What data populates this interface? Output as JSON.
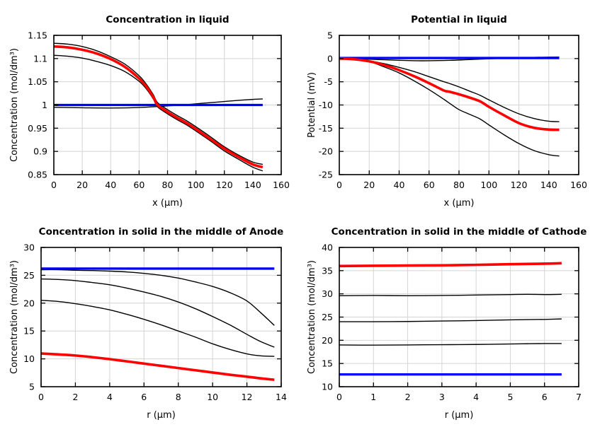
{
  "figure": {
    "background": "#ffffff",
    "grid_color": "#d4d4d4",
    "axis_color": "#000000",
    "text_color": "#000000",
    "accent_red": "#ff0000",
    "accent_blue": "#0000ff"
  },
  "chart_data": [
    {
      "id": "concentration-in-liquid",
      "type": "line",
      "title": "Concentration in liquid",
      "xlabel": "x (μm)",
      "ylabel": "Concentration (mol/dm³)",
      "xlim": [
        0,
        160
      ],
      "ylim": [
        0.85,
        1.15
      ],
      "xticks": [
        0,
        20,
        40,
        60,
        80,
        100,
        120,
        140,
        160
      ],
      "xtick_labels": [
        "0",
        "20",
        "40",
        "60",
        "80",
        "100",
        "120",
        "140",
        "160"
      ],
      "yticks": [
        0.85,
        0.9,
        0.95,
        1,
        1.05,
        1.1,
        1.15
      ],
      "ytick_labels": [
        "0.85",
        "0.9",
        "0.95",
        "1",
        "1.05",
        "1.1",
        "1.15"
      ],
      "grid": true,
      "legend_position": "none",
      "series": [
        {
          "name": "black-curve-upper",
          "color": "#000000",
          "width": 1.4,
          "x": [
            0,
            10,
            20,
            30,
            40,
            50,
            60,
            65,
            70,
            73,
            80,
            87,
            94,
            100,
            110,
            120,
            130,
            140,
            147
          ],
          "y": [
            1.133,
            1.131,
            1.126,
            1.117,
            1.104,
            1.088,
            1.063,
            1.045,
            1.022,
            1.005,
            0.99,
            0.977,
            0.965,
            0.953,
            0.932,
            0.91,
            0.892,
            0.877,
            0.872
          ]
        },
        {
          "name": "black-curve-lower",
          "color": "#000000",
          "width": 1.4,
          "x": [
            0,
            10,
            20,
            30,
            40,
            50,
            60,
            65,
            70,
            73,
            80,
            87,
            94,
            100,
            110,
            120,
            130,
            140,
            147
          ],
          "y": [
            1.107,
            1.105,
            1.101,
            1.094,
            1.085,
            1.072,
            1.051,
            1.035,
            1.013,
            0.996,
            0.981,
            0.968,
            0.956,
            0.944,
            0.923,
            0.901,
            0.883,
            0.866,
            0.858
          ]
        },
        {
          "name": "black-curve-flat",
          "color": "#000000",
          "width": 1.4,
          "x": [
            0,
            20,
            40,
            60,
            80,
            90,
            100,
            110,
            120,
            130,
            140,
            147
          ],
          "y": [
            0.995,
            0.994,
            0.9935,
            0.9945,
            0.998,
            1.0,
            1.0025,
            1.005,
            1.0075,
            1.01,
            1.012,
            1.013
          ]
        },
        {
          "name": "blue-thick-line",
          "color": "#0000ff",
          "width": 3.3,
          "x": [
            0,
            147
          ],
          "y": [
            1.0,
            1.0
          ]
        },
        {
          "name": "red-thick-line",
          "color": "#ff0000",
          "width": 3.6,
          "x": [
            0,
            10,
            20,
            30,
            40,
            50,
            60,
            65,
            70,
            73,
            80,
            87,
            94,
            100,
            110,
            120,
            130,
            140,
            147
          ],
          "y": [
            1.126,
            1.124,
            1.119,
            1.111,
            1.099,
            1.082,
            1.057,
            1.04,
            1.017,
            1.0,
            0.985,
            0.972,
            0.96,
            0.948,
            0.927,
            0.906,
            0.888,
            0.872,
            0.866
          ]
        }
      ]
    },
    {
      "id": "potential-in-liquid",
      "type": "line",
      "title": "Potential in liquid",
      "xlabel": "x (μm)",
      "ylabel": "Potential (mV)",
      "xlim": [
        0,
        160
      ],
      "ylim": [
        -25,
        5
      ],
      "xticks": [
        0,
        20,
        40,
        60,
        80,
        100,
        120,
        140,
        160
      ],
      "xtick_labels": [
        "0",
        "20",
        "40",
        "60",
        "80",
        "100",
        "120",
        "140",
        "160"
      ],
      "yticks": [
        -25,
        -20,
        -15,
        -10,
        -5,
        0,
        5
      ],
      "ytick_labels": [
        "-25",
        "-20",
        "-15",
        "-10",
        "-5",
        "0",
        "5"
      ],
      "grid": true,
      "legend_position": "none",
      "series": [
        {
          "name": "black-curve-middle",
          "color": "#000000",
          "width": 1.4,
          "x": [
            0,
            10,
            20,
            30,
            40,
            50,
            60,
            70,
            73,
            80,
            87,
            94,
            100,
            110,
            120,
            130,
            140,
            147
          ],
          "y": [
            0,
            -0.1,
            -0.5,
            -1.1,
            -1.9,
            -2.8,
            -3.9,
            -5.0,
            -5.3,
            -6.1,
            -7.0,
            -7.9,
            -8.9,
            -10.5,
            -11.9,
            -12.9,
            -13.5,
            -13.6
          ]
        },
        {
          "name": "black-curve-lowest",
          "color": "#000000",
          "width": 1.4,
          "x": [
            0,
            10,
            20,
            30,
            40,
            50,
            60,
            70,
            74,
            80,
            87,
            94,
            100,
            110,
            120,
            130,
            140,
            147
          ],
          "y": [
            0,
            -0.2,
            -0.65,
            -1.8,
            -3.1,
            -4.8,
            -6.7,
            -8.8,
            -9.7,
            -11.0,
            -12.0,
            -13.0,
            -14.3,
            -16.4,
            -18.3,
            -19.8,
            -20.7,
            -21.0
          ]
        },
        {
          "name": "black-curve-near-zero",
          "color": "#000000",
          "width": 1.4,
          "x": [
            0,
            20,
            40,
            55,
            70,
            85,
            100,
            115,
            130,
            140,
            147
          ],
          "y": [
            0,
            -0.15,
            -0.38,
            -0.48,
            -0.42,
            -0.25,
            -0.05,
            0.1,
            0.25,
            0.3,
            0.32
          ]
        },
        {
          "name": "blue-thick-line",
          "color": "#0000ff",
          "width": 3.3,
          "x": [
            0,
            147
          ],
          "y": [
            0.12,
            0.12
          ]
        },
        {
          "name": "red-thick-line",
          "color": "#ff0000",
          "width": 3.6,
          "x": [
            0,
            10,
            20,
            30,
            40,
            50,
            60,
            70,
            73,
            80,
            87,
            94,
            100,
            110,
            120,
            130,
            140,
            147
          ],
          "y": [
            0,
            -0.15,
            -0.6,
            -1.4,
            -2.5,
            -3.8,
            -5.3,
            -6.9,
            -7.1,
            -7.7,
            -8.4,
            -9.2,
            -10.4,
            -12.2,
            -13.9,
            -14.9,
            -15.3,
            -15.35
          ]
        }
      ]
    },
    {
      "id": "concentration-solid-anode",
      "type": "line",
      "title": "Concentration in solid in the middle of Anode",
      "xlabel": "r (μm)",
      "ylabel": "Concentration (mol/dm³)",
      "xlim": [
        0,
        14
      ],
      "ylim": [
        5,
        30
      ],
      "xticks": [
        0,
        2,
        4,
        6,
        8,
        10,
        12,
        14
      ],
      "xtick_labels": [
        "0",
        "2",
        "4",
        "6",
        "8",
        "10",
        "12",
        "14"
      ],
      "yticks": [
        5,
        10,
        15,
        20,
        25,
        30
      ],
      "ytick_labels": [
        "5",
        "10",
        "15",
        "20",
        "25",
        "30"
      ],
      "grid": true,
      "legend_position": "none",
      "series": [
        {
          "name": "black-curve-1",
          "color": "#000000",
          "width": 1.4,
          "x": [
            0,
            1,
            2,
            3,
            4,
            5,
            6,
            7,
            8,
            9,
            10,
            11,
            12,
            12.8,
            13.6
          ],
          "y": [
            26.0,
            26.0,
            25.9,
            25.85,
            25.75,
            25.6,
            25.35,
            25.0,
            24.5,
            23.8,
            23.0,
            21.9,
            20.4,
            18.3,
            16.0
          ]
        },
        {
          "name": "black-curve-2",
          "color": "#000000",
          "width": 1.4,
          "x": [
            0,
            1,
            2,
            3,
            4,
            5,
            6,
            7,
            8,
            9,
            10,
            11,
            12,
            12.8,
            13.6
          ],
          "y": [
            24.35,
            24.25,
            24.05,
            23.7,
            23.3,
            22.7,
            22.0,
            21.2,
            20.2,
            19.0,
            17.6,
            16.1,
            14.4,
            13.1,
            12.1
          ]
        },
        {
          "name": "black-curve-3",
          "color": "#000000",
          "width": 1.4,
          "x": [
            0,
            1,
            2,
            3,
            4,
            5,
            6,
            7,
            8,
            9,
            10,
            11,
            12,
            12.8,
            13.6
          ],
          "y": [
            20.5,
            20.3,
            19.9,
            19.4,
            18.8,
            18.0,
            17.1,
            16.1,
            15.0,
            13.9,
            12.7,
            11.7,
            10.9,
            10.55,
            10.45
          ]
        },
        {
          "name": "blue-thick-line",
          "color": "#0000ff",
          "width": 3.3,
          "x": [
            0,
            13.6
          ],
          "y": [
            26.2,
            26.2
          ]
        },
        {
          "name": "red-thick-line",
          "color": "#ff0000",
          "width": 3.6,
          "x": [
            0,
            1,
            2,
            3,
            4,
            5,
            6,
            7,
            8,
            9,
            10,
            11,
            12,
            12.8,
            13.6
          ],
          "y": [
            10.95,
            10.8,
            10.6,
            10.3,
            9.95,
            9.55,
            9.15,
            8.75,
            8.35,
            7.95,
            7.55,
            7.15,
            6.8,
            6.5,
            6.25
          ]
        }
      ]
    },
    {
      "id": "concentration-solid-cathode",
      "type": "line",
      "title": "Concentration in solid in the middle of Cathode",
      "xlabel": "r (μm)",
      "ylabel": "Concentration (mol/dm³)",
      "xlim": [
        0,
        7
      ],
      "ylim": [
        10,
        40
      ],
      "xticks": [
        0,
        1,
        2,
        3,
        4,
        5,
        6,
        7
      ],
      "xtick_labels": [
        "0",
        "1",
        "2",
        "3",
        "4",
        "5",
        "6",
        "7"
      ],
      "yticks": [
        10,
        15,
        20,
        25,
        30,
        35,
        40
      ],
      "ytick_labels": [
        "10",
        "15",
        "20",
        "25",
        "30",
        "35",
        "40"
      ],
      "grid": true,
      "legend_position": "none",
      "series": [
        {
          "name": "black-curve-1",
          "color": "#000000",
          "width": 1.4,
          "x": [
            0,
            1,
            2,
            3,
            4,
            5,
            5.5,
            6,
            6.5
          ],
          "y": [
            29.6,
            29.65,
            29.6,
            29.65,
            29.75,
            29.85,
            29.9,
            29.85,
            29.9
          ]
        },
        {
          "name": "black-curve-2",
          "color": "#000000",
          "width": 1.4,
          "x": [
            0,
            1,
            2,
            3,
            4,
            5,
            5.5,
            6,
            6.5
          ],
          "y": [
            24.0,
            24.0,
            24.05,
            24.15,
            24.25,
            24.4,
            24.45,
            24.5,
            24.6
          ]
        },
        {
          "name": "black-curve-3",
          "color": "#000000",
          "width": 1.4,
          "x": [
            0,
            1,
            2,
            3,
            4,
            5,
            5.5,
            6,
            6.5
          ],
          "y": [
            19.0,
            18.95,
            19.0,
            19.05,
            19.1,
            19.2,
            19.25,
            19.3,
            19.3
          ]
        },
        {
          "name": "blue-thick-line",
          "color": "#0000ff",
          "width": 3.3,
          "x": [
            0,
            6.5
          ],
          "y": [
            12.65,
            12.65
          ]
        },
        {
          "name": "red-thick-line",
          "color": "#ff0000",
          "width": 3.6,
          "x": [
            0,
            1,
            2,
            3,
            4,
            5,
            5.5,
            6,
            6.5
          ],
          "y": [
            36.0,
            36.05,
            36.1,
            36.15,
            36.25,
            36.4,
            36.45,
            36.5,
            36.6
          ]
        }
      ]
    }
  ]
}
